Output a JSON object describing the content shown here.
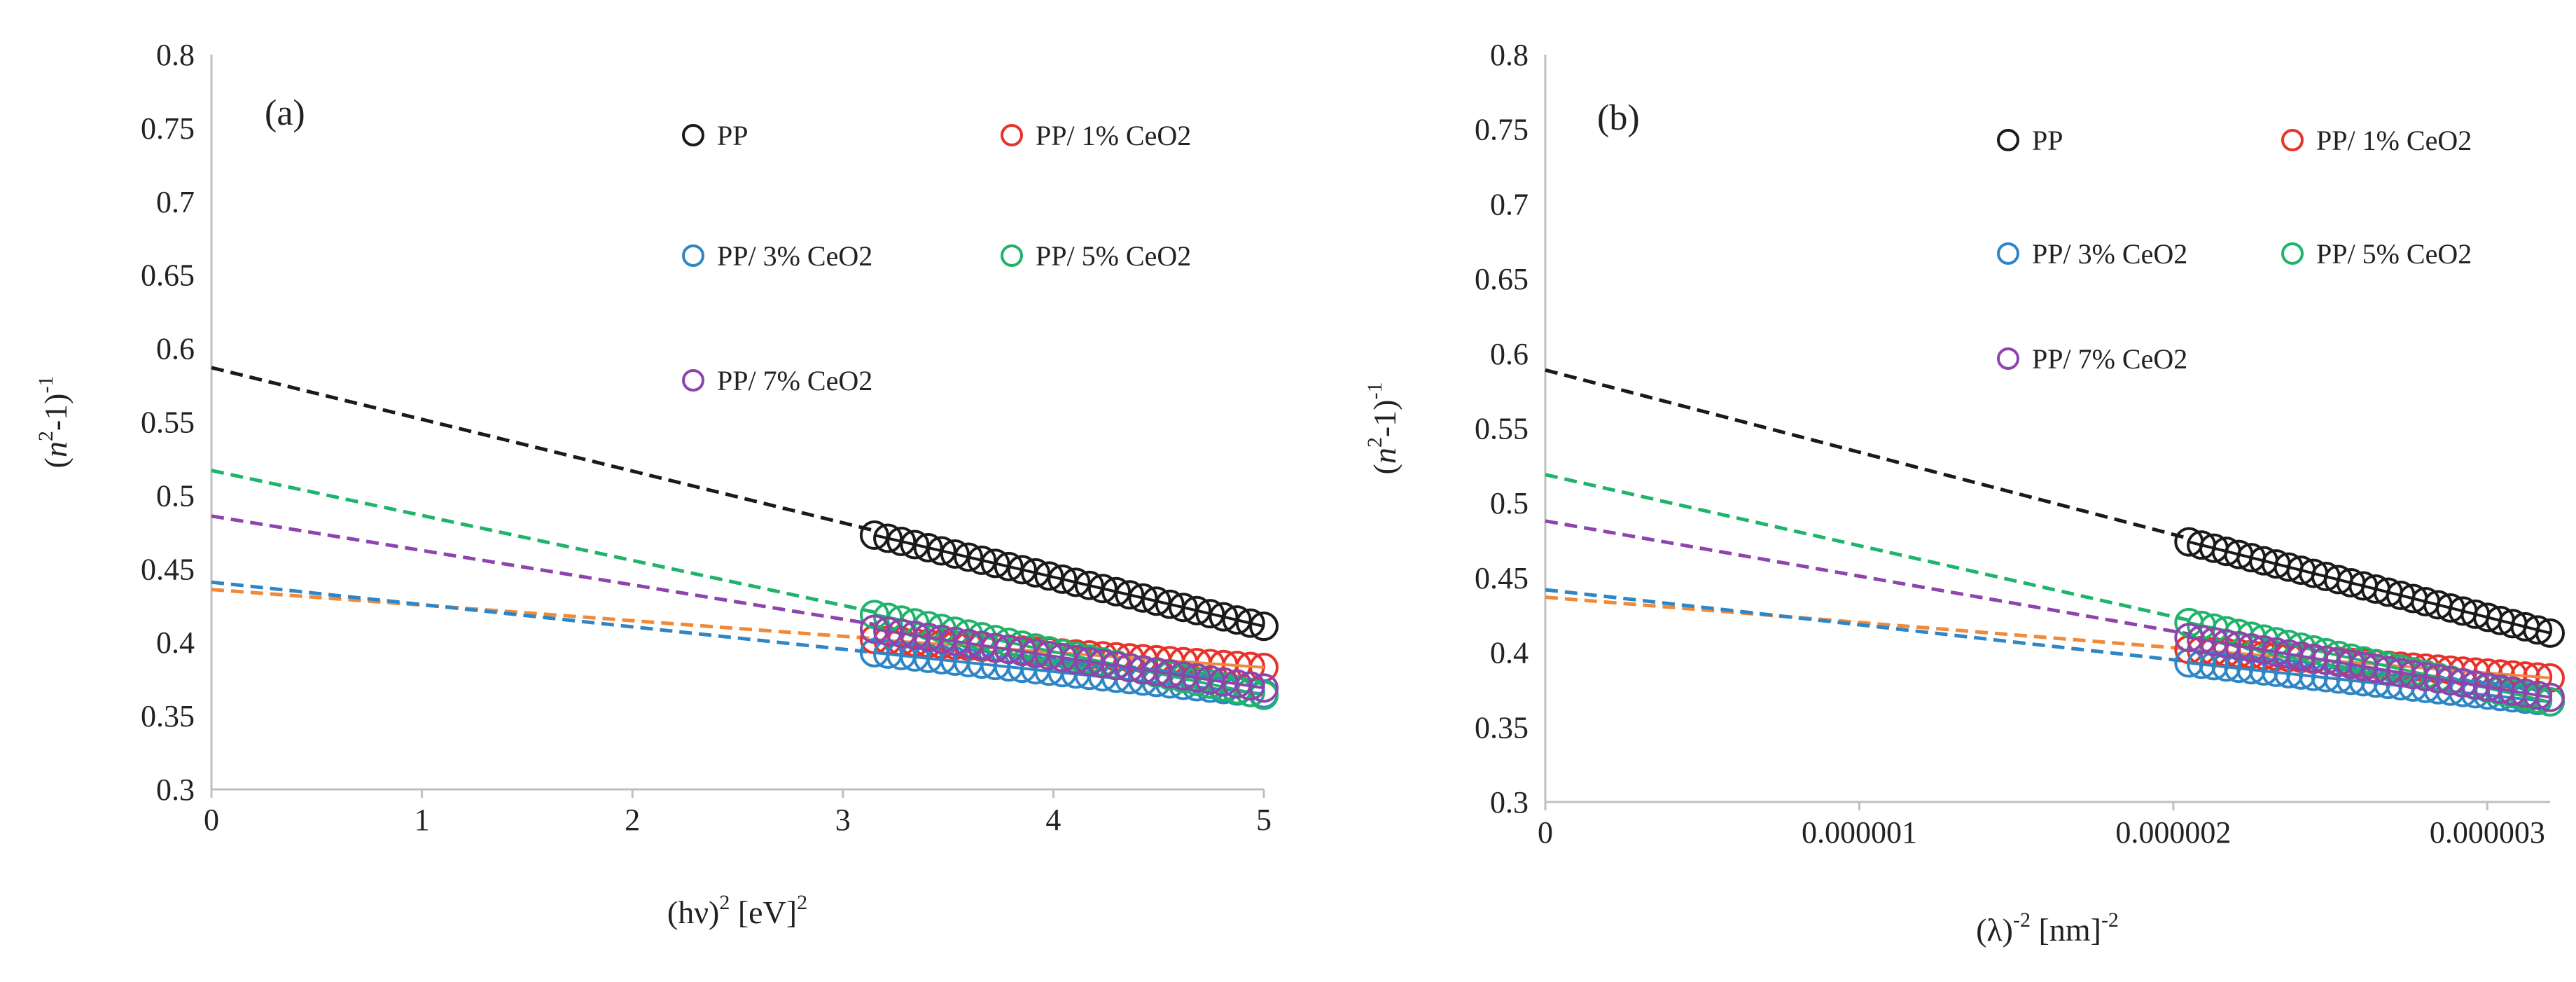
{
  "chart_data": [
    {
      "type": "scatter",
      "panel_label": "(a)",
      "xlabel": {
        "main": "(hν)",
        "sup": "2",
        "unit": " [eV]",
        "unit_sup": "2"
      },
      "ylabel": {
        "open": "(",
        "n": "n",
        "sup1": "2",
        "mid": "-1)",
        "sup2": "-1"
      },
      "xlim": [
        0,
        5
      ],
      "ylim": [
        0.3,
        0.8
      ],
      "x_ticks": [
        0,
        1,
        2,
        3,
        4,
        5
      ],
      "x_tick_labels": [
        "0",
        "1",
        "2",
        "3",
        "4",
        "5"
      ],
      "y_ticks": [
        0.3,
        0.35,
        0.4,
        0.45,
        0.5,
        0.55,
        0.6,
        0.65,
        0.7,
        0.75,
        0.8
      ],
      "y_tick_labels": [
        "0.3",
        "0.35",
        "0.4",
        "0.45",
        "0.5",
        "0.55",
        "0.6",
        "0.65",
        "0.7",
        "0.75",
        "0.8"
      ],
      "x_data_range": [
        3.15,
        5.0
      ],
      "points_per_series": 30,
      "series": [
        {
          "name": "PP",
          "color": "#1a1a1a",
          "y_start": 0.473,
          "y_end": 0.411,
          "fit_intercept": 0.587,
          "fit_color": "#1a1a1a"
        },
        {
          "name": "PP/ 1% CeO2",
          "color": "#e8322a",
          "y_start": 0.402,
          "y_end": 0.383,
          "fit_intercept": 0.436,
          "fit_color": "#ef8a3a"
        },
        {
          "name": "PP/ 3% CeO2",
          "color": "#2f86c6",
          "y_start": 0.393,
          "y_end": 0.365,
          "fit_intercept": 0.441,
          "fit_color": "#2f86c6"
        },
        {
          "name": "PP/ 5% CeO2",
          "color": "#1fb36b",
          "y_start": 0.419,
          "y_end": 0.364,
          "fit_intercept": 0.517,
          "fit_color": "#1fb36b"
        },
        {
          "name": "PP/ 7% CeO2",
          "color": "#8e44ad",
          "y_start": 0.409,
          "y_end": 0.369,
          "fit_intercept": 0.486,
          "fit_color": "#8e44ad"
        }
      ]
    },
    {
      "type": "scatter",
      "panel_label": "(b)",
      "xlabel": {
        "main": "(λ)",
        "sup": "-2",
        "unit": " [nm]",
        "unit_sup": "-2"
      },
      "ylabel": {
        "open": "(",
        "n": "n",
        "sup1": "2",
        "mid": "-1)",
        "sup2": "-1"
      },
      "xlim": [
        0,
        3.2e-06
      ],
      "ylim": [
        0.3,
        0.8
      ],
      "x_ticks": [
        0,
        1e-06,
        2e-06,
        3e-06
      ],
      "x_tick_labels": [
        "0",
        "0.000001",
        "0.000002",
        "0.000003"
      ],
      "y_ticks": [
        0.3,
        0.35,
        0.4,
        0.45,
        0.5,
        0.55,
        0.6,
        0.65,
        0.7,
        0.75,
        0.8
      ],
      "y_tick_labels": [
        "0.3",
        "0.35",
        "0.4",
        "0.45",
        "0.5",
        "0.55",
        "0.6",
        "0.65",
        "0.7",
        "0.75",
        "0.8"
      ],
      "x_data_range": [
        2.05e-06,
        3.2e-06
      ],
      "points_per_series": 30,
      "series": [
        {
          "name": "PP",
          "color": "#1a1a1a",
          "y_start": 0.474,
          "y_end": 0.413,
          "fit_intercept": 0.589,
          "fit_color": "#1a1a1a"
        },
        {
          "name": "PP/ 1% CeO2",
          "color": "#e8322a",
          "y_start": 0.402,
          "y_end": 0.383,
          "fit_intercept": 0.437,
          "fit_color": "#ef8a3a"
        },
        {
          "name": "PP/ 3% CeO2",
          "color": "#2f86c6",
          "y_start": 0.393,
          "y_end": 0.367,
          "fit_intercept": 0.442,
          "fit_color": "#2f86c6"
        },
        {
          "name": "PP/ 5% CeO2",
          "color": "#1fb36b",
          "y_start": 0.42,
          "y_end": 0.367,
          "fit_intercept": 0.519,
          "fit_color": "#1fb36b"
        },
        {
          "name": "PP/ 7% CeO2",
          "color": "#8e44ad",
          "y_start": 0.41,
          "y_end": 0.37,
          "fit_intercept": 0.488,
          "fit_color": "#8e44ad"
        }
      ]
    }
  ]
}
